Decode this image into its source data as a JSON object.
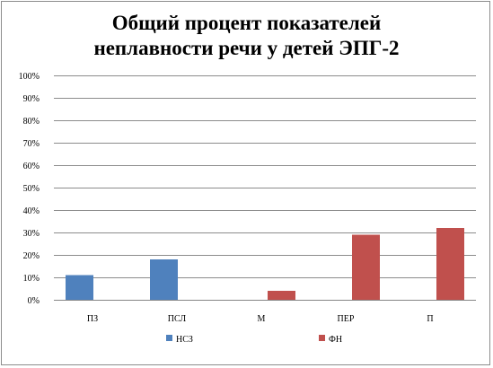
{
  "chart_data": {
    "type": "bar",
    "title_lines": [
      "Общий процент показателей",
      "неплавности речи у детей ЭПГ-2"
    ],
    "categories": [
      "ПЗ",
      "ПСЛ",
      "М",
      "ПЕР",
      "П"
    ],
    "series": [
      {
        "name": "НСЗ",
        "color": "#4f81bd",
        "values": [
          11,
          18,
          0,
          0,
          0
        ]
      },
      {
        "name": "ФН",
        "color": "#c0504d",
        "values": [
          0,
          0,
          4,
          29,
          32
        ]
      }
    ],
    "ylim": [
      0,
      100
    ],
    "y_ticks": [
      "0%",
      "10%",
      "20%",
      "30%",
      "40%",
      "50%",
      "60%",
      "70%",
      "80%",
      "90%",
      "100%"
    ],
    "grid": true,
    "legend_position": "bottom"
  }
}
